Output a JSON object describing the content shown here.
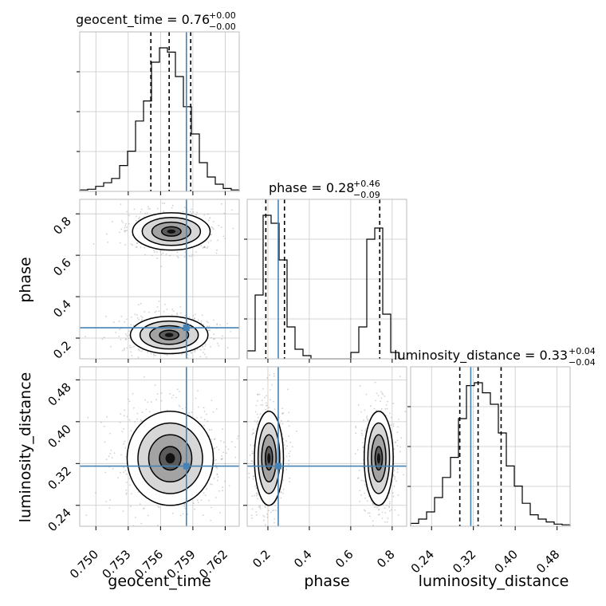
{
  "chart_data": {
    "type": "corner",
    "truth_color": "#4682b4",
    "grid": true,
    "parameters": [
      {
        "name": "geocent_time",
        "axis_label": "geocent_time",
        "title_main": "geocent_time = 0.76",
        "title_plus": "+0.00",
        "title_minus": "−0.00",
        "ticks": [
          0.75,
          0.753,
          0.756,
          0.759,
          0.762
        ],
        "tick_labels": [
          "0.750",
          "0.753",
          "0.756",
          "0.759",
          "0.762"
        ],
        "range": [
          0.7485,
          0.7633
        ],
        "quantiles": [
          0.7551,
          0.7568,
          0.7588
        ],
        "truth": 0.7584
      },
      {
        "name": "phase",
        "axis_label": "phase",
        "title_main": "phase = 0.28",
        "title_plus": "+0.46",
        "title_minus": "−0.09",
        "ticks": [
          0.2,
          0.4,
          0.6,
          0.8
        ],
        "tick_labels": [
          "0.2",
          "0.4",
          "0.6",
          "0.8"
        ],
        "range": [
          0.1,
          0.87
        ],
        "quantiles": [
          0.19,
          0.28,
          0.74
        ],
        "truth": 0.25
      },
      {
        "name": "luminosity_distance",
        "axis_label": "luminosity_distance",
        "title_main": "luminosity_distance = 0.33",
        "title_plus": "+0.04",
        "title_minus": "−0.04",
        "ticks": [
          0.24,
          0.32,
          0.4,
          0.48
        ],
        "tick_labels": [
          "0.24",
          "0.32",
          "0.40",
          "0.48"
        ],
        "range": [
          0.2,
          0.505
        ],
        "quantiles": [
          0.294,
          0.329,
          0.373
        ],
        "truth": 0.315
      }
    ],
    "histograms": {
      "geocent_time": {
        "bin_edges": [
          0.7485,
          0.74924,
          0.74998,
          0.75072,
          0.75146,
          0.7522,
          0.75294,
          0.75368,
          0.75442,
          0.75516,
          0.7559,
          0.75664,
          0.75738,
          0.75812,
          0.75886,
          0.7596,
          0.76034,
          0.76108,
          0.76182,
          0.76256,
          0.7633
        ],
        "counts": [
          0.01,
          0.015,
          0.035,
          0.06,
          0.09,
          0.18,
          0.28,
          0.49,
          0.63,
          0.9,
          1.0,
          0.97,
          0.8,
          0.59,
          0.4,
          0.2,
          0.1,
          0.05,
          0.02,
          0.01
        ]
      },
      "phase": {
        "bin_edges": [
          0.1,
          0.1385,
          0.177,
          0.2155,
          0.254,
          0.2925,
          0.331,
          0.3695,
          0.408,
          0.4465,
          0.485,
          0.5235,
          0.562,
          0.6005,
          0.639,
          0.6775,
          0.716,
          0.7545,
          0.793,
          0.8315,
          0.87
        ],
        "counts": [
          0.05,
          0.4,
          0.9,
          0.85,
          0.62,
          0.2,
          0.06,
          0.02,
          0.0,
          0.0,
          0.0,
          0.0,
          0.0,
          0.04,
          0.2,
          0.75,
          0.82,
          0.28,
          0.04,
          0.0
        ]
      },
      "luminosity_distance": {
        "bin_edges": [
          0.2,
          0.21525,
          0.2305,
          0.24575,
          0.261,
          0.27625,
          0.2915,
          0.30675,
          0.322,
          0.33725,
          0.3525,
          0.36775,
          0.383,
          0.39825,
          0.4135,
          0.42875,
          0.444,
          0.45925,
          0.4745,
          0.48975,
          0.505
        ],
        "counts": [
          0.02,
          0.05,
          0.1,
          0.2,
          0.34,
          0.48,
          0.75,
          0.98,
          1.0,
          0.93,
          0.85,
          0.65,
          0.42,
          0.28,
          0.16,
          0.08,
          0.05,
          0.03,
          0.015,
          0.01
        ]
      }
    },
    "contours_2d": [
      {
        "x": "geocent_time",
        "y": "phase",
        "blobs": [
          {
            "cx": 0.757,
            "cy": 0.715,
            "sx": 0.0018,
            "sy": 0.045,
            "n": 600
          },
          {
            "cx": 0.7568,
            "cy": 0.215,
            "sx": 0.0018,
            "sy": 0.045,
            "n": 600
          }
        ]
      },
      {
        "x": "geocent_time",
        "y": "luminosity_distance",
        "blobs": [
          {
            "cx": 0.7569,
            "cy": 0.33,
            "sx": 0.002,
            "sy": 0.045,
            "n": 900
          }
        ]
      },
      {
        "x": "phase",
        "y": "luminosity_distance",
        "blobs": [
          {
            "cx": 0.205,
            "cy": 0.33,
            "sx": 0.035,
            "sy": 0.045,
            "n": 700
          },
          {
            "cx": 0.735,
            "cy": 0.33,
            "sx": 0.035,
            "sy": 0.045,
            "n": 700
          }
        ]
      }
    ]
  }
}
